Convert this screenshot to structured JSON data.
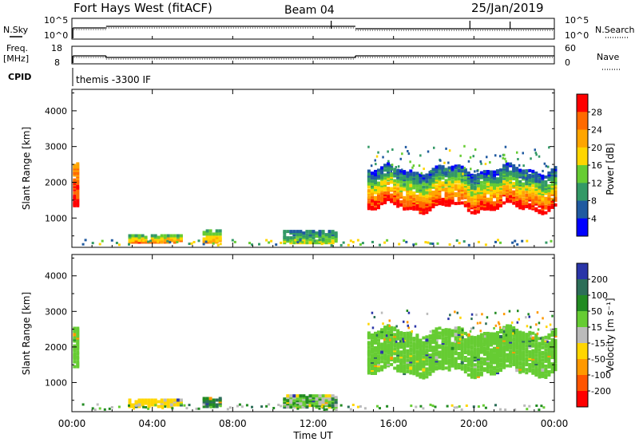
{
  "header": {
    "station": "Fort Hays West (fitACF)",
    "beam": "Beam 04",
    "date": "25/Jan/2019"
  },
  "status_panels": {
    "nsky_label": "N.Sky",
    "nsearch_label": "N.Search",
    "noise_ticks": [
      "10^5",
      "10^0"
    ],
    "freq_label_1": "Freq.",
    "freq_label_2": "[MHz]",
    "freq_ticks": [
      "18",
      "8"
    ],
    "nave_label": "Nave",
    "nave_ticks": [
      "60",
      "0"
    ],
    "cpid_label": "CPID",
    "cpid_value": "themis -3300 IF"
  },
  "axes": {
    "ylabel": "Slant Range [km]",
    "yticks": [
      "4000",
      "3000",
      "2000",
      "1000"
    ],
    "xlabel": "Time UT",
    "xticks": [
      "00:00",
      "04:00",
      "08:00",
      "12:00",
      "16:00",
      "20:00",
      "00:00"
    ]
  },
  "power_scale": {
    "label": "Power [dB]",
    "ticks": [
      "28",
      "24",
      "20",
      "16",
      "12",
      "8",
      "4"
    ],
    "colors": [
      "#ff0000",
      "#ff6a00",
      "#ffa500",
      "#ffd600",
      "#66cc33",
      "#339966",
      "#205aa0",
      "#0000ff"
    ]
  },
  "velocity_scale": {
    "label": "Velocity [m s⁻¹]",
    "ticks": [
      "200",
      "100",
      "50",
      "15",
      "-15",
      "-50",
      "-100",
      "-200"
    ],
    "colors": [
      "#2a35a8",
      "#2c6e58",
      "#228b22",
      "#66cc33",
      "#bbbbbb",
      "#ffd600",
      "#ff9900",
      "#ff5500",
      "#ff0000"
    ]
  },
  "chart_data": [
    {
      "type": "heatmap",
      "title": "Power",
      "xlabel": "Time UT",
      "ylabel": "Slant Range [km]",
      "xlim": [
        0,
        24
      ],
      "ylim": [
        180,
        4600
      ],
      "clim": [
        0,
        30
      ],
      "grid": false,
      "regions": [
        {
          "t0": 0.05,
          "t1": 0.3,
          "r_lo": 1300,
          "r_hi": 2500,
          "v_lo": 20,
          "v_hi": 30
        },
        {
          "t0": 2.8,
          "t1": 5.5,
          "r_lo": 280,
          "r_hi": 500,
          "v_lo": 8,
          "v_hi": 24
        },
        {
          "t0": 6.5,
          "t1": 7.4,
          "r_lo": 280,
          "r_hi": 600,
          "v_lo": 10,
          "v_hi": 22
        },
        {
          "t0": 10.5,
          "t1": 13.2,
          "r_lo": 220,
          "r_hi": 620,
          "v_lo": 6,
          "v_hi": 16
        },
        {
          "t0": 14.7,
          "t1": 24,
          "r_lo": 1250,
          "r_hi": 1800,
          "v_lo": 16,
          "v_hi": 30
        },
        {
          "t0": 14.7,
          "t1": 24,
          "r_lo": 1800,
          "r_hi": 2300,
          "v_lo": 4,
          "v_hi": 16
        }
      ]
    },
    {
      "type": "heatmap",
      "title": "Velocity",
      "xlabel": "Time UT",
      "ylabel": "Slant Range [km]",
      "xlim": [
        0,
        24
      ],
      "ylim": [
        180,
        4600
      ],
      "clim": [
        -200,
        200
      ],
      "grid": false,
      "regions": [
        {
          "t0": 0.05,
          "t1": 0.3,
          "r_lo": 1400,
          "r_hi": 2500,
          "v_lo": -10,
          "v_hi": 10
        },
        {
          "t0": 2.8,
          "t1": 5.5,
          "r_lo": 280,
          "r_hi": 480,
          "v_lo": -80,
          "v_hi": -40
        },
        {
          "t0": 6.5,
          "t1": 7.4,
          "r_lo": 280,
          "r_hi": 520,
          "v_lo": 20,
          "v_hi": 80
        },
        {
          "t0": 10.5,
          "t1": 13.2,
          "r_lo": 220,
          "r_hi": 620,
          "v_lo": -60,
          "v_hi": 60
        },
        {
          "t0": 14.7,
          "t1": 24,
          "r_lo": 1250,
          "r_hi": 2400,
          "v_lo": -12,
          "v_hi": 12
        }
      ]
    }
  ]
}
